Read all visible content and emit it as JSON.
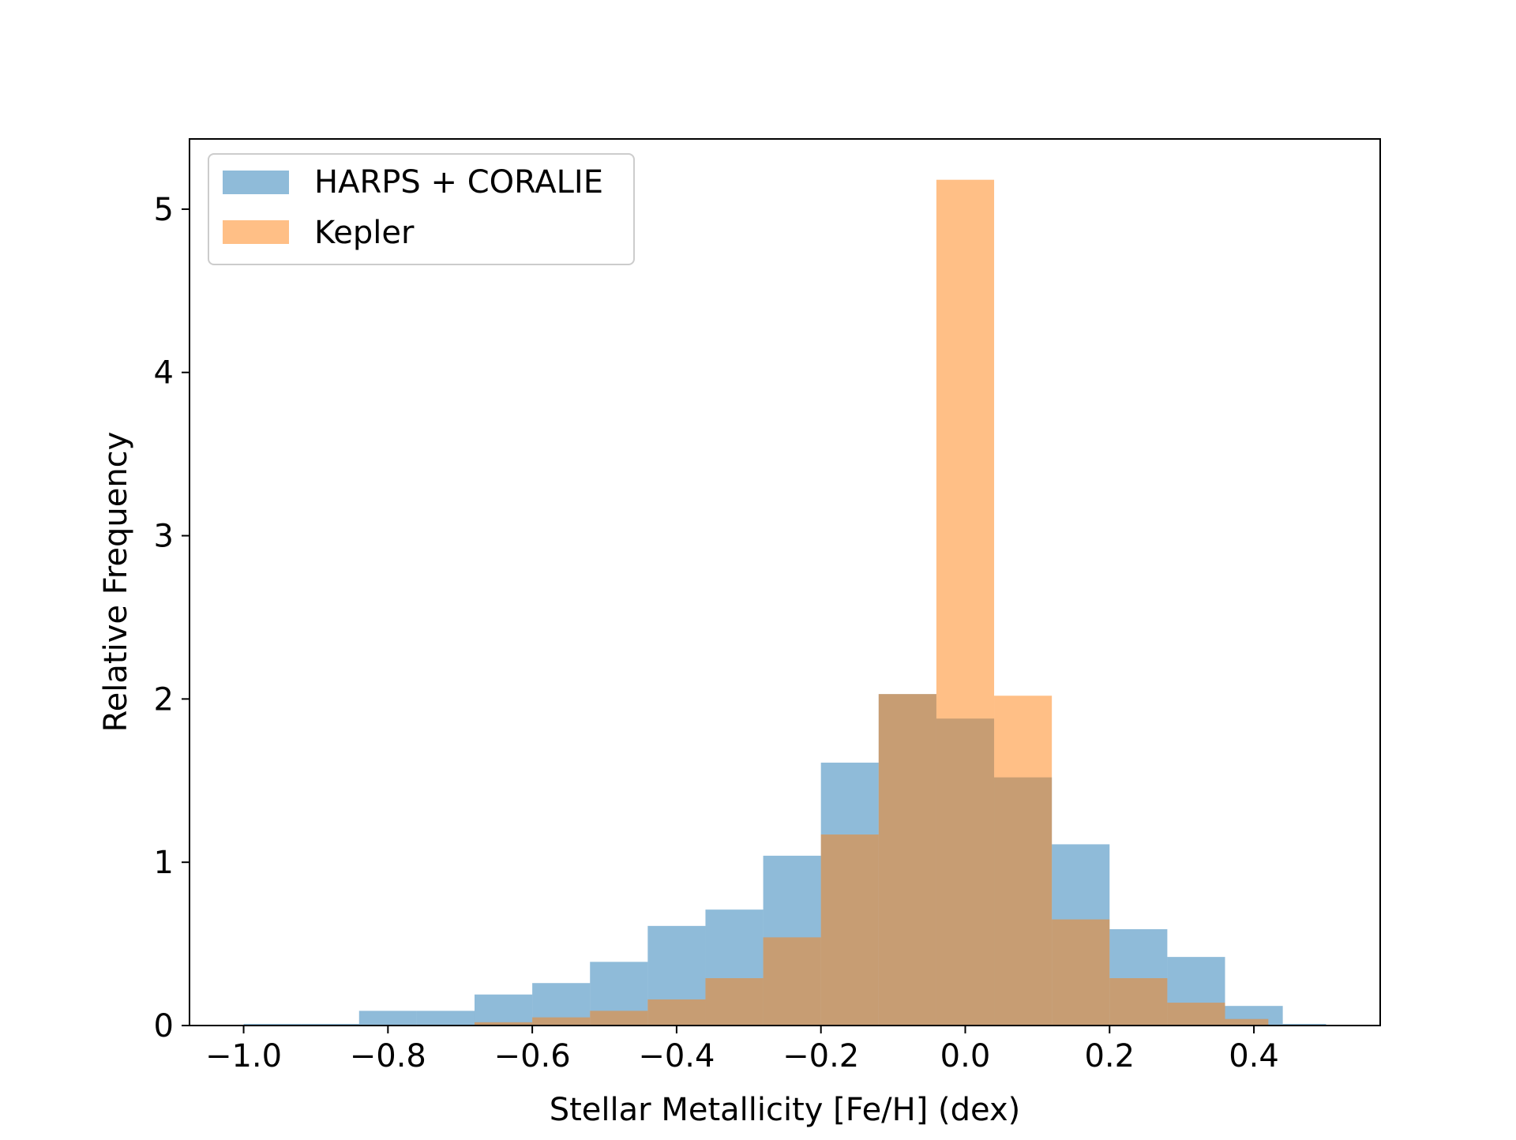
{
  "chart_data": {
    "type": "bar",
    "title": "",
    "xlabel": "Stellar Metallicity [Fe/H] (dex)",
    "ylabel": "Relative Frequency",
    "xlim": [
      -1.075,
      0.575
    ],
    "ylim": [
      0,
      5.43
    ],
    "xticks": [
      -1.0,
      -0.8,
      -0.6,
      -0.4,
      -0.2,
      0.0,
      0.2,
      0.4
    ],
    "xtick_labels": [
      "−1.0",
      "−0.8",
      "−0.6",
      "−0.4",
      "−0.2",
      "0.0",
      "0.2",
      "0.4"
    ],
    "yticks": [
      0,
      1,
      2,
      3,
      4,
      5
    ],
    "ytick_labels": [
      "0",
      "1",
      "2",
      "3",
      "4",
      "5"
    ],
    "grid": false,
    "legend_position": "top-left",
    "series": [
      {
        "name": "HARPS + CORALIE",
        "color": "#1f77b4",
        "opacity": 0.5,
        "bin_edges": [
          -1.0,
          -0.92,
          -0.84,
          -0.76,
          -0.68,
          -0.6,
          -0.52,
          -0.44,
          -0.36,
          -0.28,
          -0.2,
          -0.12,
          -0.04,
          0.04,
          0.12,
          0.2,
          0.28,
          0.36,
          0.44,
          0.5
        ],
        "values": [
          0.01,
          0.01,
          0.09,
          0.09,
          0.19,
          0.26,
          0.39,
          0.61,
          0.71,
          1.04,
          1.61,
          2.03,
          1.88,
          1.52,
          1.11,
          0.59,
          0.42,
          0.12,
          0.01
        ]
      },
      {
        "name": "Kepler",
        "color": "#ff7f0e",
        "opacity": 0.5,
        "bin_edges": [
          -0.68,
          -0.6,
          -0.52,
          -0.44,
          -0.36,
          -0.28,
          -0.2,
          -0.12,
          -0.04,
          0.04,
          0.12,
          0.2,
          0.28,
          0.36,
          0.42
        ],
        "values": [
          0.02,
          0.05,
          0.09,
          0.16,
          0.29,
          0.54,
          1.17,
          2.03,
          5.18,
          2.02,
          0.65,
          0.29,
          0.14,
          0.04
        ]
      }
    ]
  }
}
